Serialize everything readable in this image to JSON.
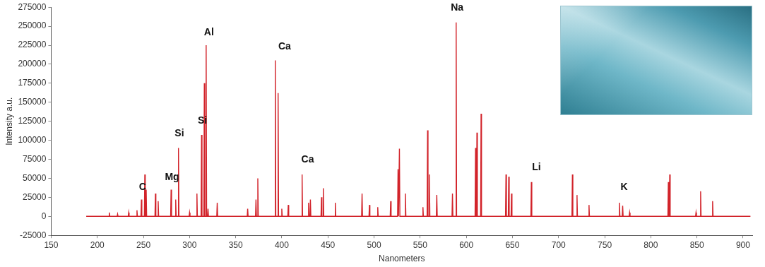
{
  "chart_data": {
    "type": "line",
    "x_label": "Nanometers",
    "y_label": "Intensity a.u.",
    "color": "#d2232a",
    "xlim": [
      150,
      910
    ],
    "xticks": [
      150,
      200,
      250,
      300,
      350,
      400,
      450,
      500,
      550,
      600,
      650,
      700,
      750,
      800,
      850,
      900
    ],
    "ylim": [
      -25000,
      275000
    ],
    "yticks": [
      -25000,
      0,
      25000,
      50000,
      75000,
      100000,
      125000,
      150000,
      175000,
      200000,
      225000,
      250000,
      275000
    ],
    "grid": false,
    "x": [
      188,
      212.5,
      213,
      213.5,
      221.5,
      222,
      222.5,
      233.5,
      234,
      234.5,
      242.5,
      243,
      243.5,
      247.3,
      247.8,
      248.3,
      251,
      251.5,
      252,
      252.5,
      253,
      253.5,
      262.5,
      263,
      263.5,
      265.5,
      266,
      266.5,
      279.5,
      280,
      280.5,
      284.5,
      285,
      285.5,
      287.5,
      288,
      288.5,
      299.5,
      300,
      300.5,
      307.5,
      308,
      308.5,
      312.5,
      313,
      313.5,
      315.5,
      316,
      316.5,
      317.5,
      318,
      318.5,
      319.5,
      320,
      320.5,
      329.5,
      330,
      330.5,
      362.5,
      363,
      363.5,
      371.5,
      372,
      372.5,
      373.5,
      374,
      374.5,
      392.5,
      393,
      393.5,
      395.5,
      396,
      396.5,
      399.5,
      400,
      400.5,
      406.5,
      407,
      407.5,
      421.5,
      422,
      422.5,
      428.5,
      429,
      429.5,
      430.5,
      431,
      431.5,
      442.5,
      443,
      443.5,
      444.5,
      445,
      445.5,
      457.5,
      458,
      458.5,
      486.5,
      487,
      487.5,
      494.5,
      495,
      495.5,
      503.5,
      504,
      504.5,
      517.5,
      518,
      518.5,
      525.5,
      526,
      526.5,
      527,
      527.5,
      528,
      533.5,
      534,
      534.5,
      552.5,
      553,
      553.5,
      557.5,
      558,
      558.5,
      559.5,
      560,
      560.5,
      567.5,
      568,
      568.5,
      584.5,
      585,
      585.5,
      588.5,
      589,
      589.5,
      609.5,
      610,
      610.5,
      611,
      611.5,
      612,
      615.5,
      616,
      616.5,
      642.5,
      643,
      643.5,
      645.5,
      646,
      646.5,
      648.5,
      649,
      649.5,
      670,
      670.5,
      671,
      714.5,
      715,
      715.5,
      719.5,
      720,
      720.5,
      732.5,
      733,
      733.5,
      765.5,
      766,
      766.5,
      769,
      769.5,
      770,
      776.5,
      777,
      777.5,
      818.5,
      819,
      819.5,
      820,
      820.5,
      821,
      848.5,
      849,
      849.5,
      853.5,
      854,
      854.5,
      866.5,
      867,
      867.5,
      908
    ],
    "values": [
      0,
      0,
      5000,
      0,
      0,
      3000,
      0,
      0,
      5000,
      0,
      0,
      8000,
      0,
      0,
      22000,
      0,
      0,
      55000,
      0,
      0,
      35000,
      0,
      0,
      30000,
      0,
      0,
      20000,
      0,
      0,
      35000,
      0,
      0,
      22000,
      0,
      0,
      90000,
      0,
      0,
      5000,
      0,
      0,
      30000,
      0,
      0,
      107000,
      0,
      0,
      175000,
      0,
      0,
      225000,
      0,
      0,
      10000,
      0,
      0,
      18000,
      0,
      0,
      10000,
      0,
      0,
      22000,
      0,
      0,
      50000,
      0,
      0,
      205000,
      0,
      0,
      162000,
      0,
      0,
      10000,
      0,
      0,
      15000,
      0,
      0,
      55000,
      0,
      0,
      18000,
      0,
      0,
      22000,
      0,
      0,
      25000,
      0,
      0,
      37000,
      0,
      0,
      18000,
      0,
      0,
      30000,
      0,
      0,
      15000,
      0,
      0,
      12000,
      0,
      0,
      20000,
      0,
      0,
      62000,
      0,
      0,
      89000,
      0,
      0,
      30000,
      0,
      0,
      12000,
      0,
      0,
      113000,
      0,
      0,
      55000,
      0,
      0,
      28000,
      0,
      0,
      30000,
      0,
      0,
      255000,
      0,
      0,
      90000,
      0,
      0,
      110000,
      0,
      0,
      135000,
      0,
      0,
      55000,
      0,
      0,
      52000,
      0,
      0,
      30000,
      0,
      0,
      45000,
      0,
      0,
      55000,
      0,
      0,
      28000,
      0,
      0,
      15000,
      0,
      0,
      18000,
      0,
      0,
      14000,
      0,
      0,
      5000,
      0,
      0,
      45000,
      0,
      0,
      55000,
      0,
      0,
      5000,
      0,
      0,
      33000,
      0,
      0,
      20000,
      0,
      0
    ],
    "annotations": [
      {
        "text": "C",
        "x": 249,
        "y": 32000
      },
      {
        "text": "Mg",
        "x": 281,
        "y": 45000
      },
      {
        "text": "Si",
        "x": 289,
        "y": 102000
      },
      {
        "text": "Si",
        "x": 314,
        "y": 119000
      },
      {
        "text": "Al",
        "x": 321,
        "y": 235000
      },
      {
        "text": "Ca",
        "x": 403,
        "y": 217000
      },
      {
        "text": "Ca",
        "x": 428,
        "y": 68000
      },
      {
        "text": "Na",
        "x": 590,
        "y": 268000
      },
      {
        "text": "Li",
        "x": 676,
        "y": 58000
      },
      {
        "text": "K",
        "x": 771,
        "y": 32000
      }
    ]
  }
}
